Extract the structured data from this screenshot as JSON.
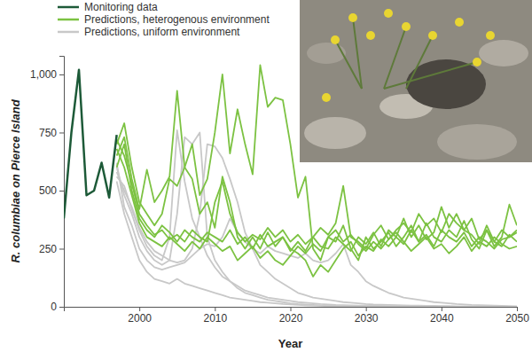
{
  "chart_data": {
    "type": "line",
    "y_label": "R. columbiae on Pierce Island",
    "x_label": "Year",
    "x": [
      1990,
      1991,
      1992,
      1993,
      1994,
      1995,
      1996,
      1997,
      1998,
      1999,
      2000,
      2001,
      2002,
      2003,
      2004,
      2005,
      2006,
      2007,
      2008,
      2009,
      2010,
      2011,
      2012,
      2013,
      2014,
      2015,
      2016,
      2017,
      2018,
      2019,
      2020,
      2021,
      2022,
      2023,
      2024,
      2025,
      2026,
      2027,
      2028,
      2029,
      2030,
      2031,
      2032,
      2033,
      2034,
      2035,
      2036,
      2037,
      2038,
      2039,
      2040,
      2041,
      2042,
      2043,
      2044,
      2045,
      2046,
      2047,
      2048,
      2049,
      2050
    ],
    "xlim": [
      1990,
      2050
    ],
    "xticks": [
      2000,
      2010,
      2020,
      2030,
      2040,
      2050
    ],
    "ylim": [
      0,
      1080
    ],
    "yticks": [
      0,
      250,
      500,
      750,
      {
        "value": 1000,
        "label": "1,000"
      }
    ],
    "legend": "top-left",
    "series": [
      {
        "name": "Monitoring data",
        "color": "#1d5a38",
        "values": [
          380,
          750,
          1020,
          480,
          500,
          620,
          470,
          740,
          null,
          null,
          null,
          null,
          null,
          null,
          null,
          null,
          null,
          null,
          null,
          null,
          null,
          null,
          null,
          null,
          null,
          null,
          null,
          null,
          null,
          null,
          null,
          null,
          null,
          null,
          null,
          null,
          null,
          null,
          null,
          null,
          null,
          null,
          null,
          null,
          null,
          null,
          null,
          null,
          null,
          null,
          null,
          null,
          null,
          null,
          null,
          null,
          null,
          null,
          null,
          null,
          null
        ]
      },
      {
        "name": "Predictions, heterogenous environment",
        "color": "#7cc242",
        "values": [
          null,
          null,
          null,
          null,
          null,
          null,
          null,
          700,
          790,
          600,
          450,
          400,
          350,
          400,
          550,
          520,
          600,
          700,
          480,
          550,
          750,
          1000,
          660,
          850,
          700,
          570,
          1040,
          860,
          900,
          890,
          700,
          470,
          560,
          250,
          200,
          300,
          280,
          350,
          250,
          200,
          300,
          250,
          280,
          320,
          260,
          300,
          350,
          280,
          310,
          260,
          330,
          300,
          280,
          320,
          260,
          300,
          280,
          250,
          290,
          300,
          320
        ]
      },
      {
        "name": "Predictions, heterogenous environment",
        "color": "#7cc242",
        "values": [
          null,
          null,
          null,
          null,
          null,
          null,
          null,
          650,
          730,
          550,
          420,
          590,
          450,
          500,
          560,
          930,
          600,
          550,
          400,
          450,
          340,
          560,
          450,
          300,
          250,
          300,
          250,
          320,
          260,
          300,
          240,
          280,
          240,
          300,
          260,
          250,
          300,
          270,
          240,
          300,
          270,
          320,
          260,
          330,
          300,
          380,
          300,
          350,
          290,
          320,
          430,
          340,
          400,
          330,
          380,
          290,
          330,
          260,
          300,
          440,
          350
        ]
      },
      {
        "name": "Predictions, heterogenous environment",
        "color": "#7cc242",
        "values": [
          null,
          null,
          null,
          null,
          null,
          null,
          null,
          600,
          700,
          500,
          380,
          330,
          300,
          350,
          320,
          280,
          330,
          300,
          280,
          320,
          300,
          280,
          330,
          270,
          300,
          250,
          310,
          260,
          280,
          300,
          250,
          230,
          200,
          130,
          180,
          150,
          200,
          250,
          280,
          220,
          260,
          240,
          290,
          260,
          300,
          270,
          330,
          280,
          360,
          300,
          280,
          330,
          300,
          370,
          290,
          250,
          330,
          280,
          260,
          310,
          280
        ]
      },
      {
        "name": "Predictions, heterogenous environment",
        "color": "#7cc242",
        "values": [
          null,
          null,
          null,
          null,
          null,
          null,
          null,
          680,
          600,
          480,
          360,
          300,
          280,
          260,
          300,
          270,
          240,
          280,
          250,
          300,
          270,
          240,
          260,
          200,
          230,
          260,
          210,
          240,
          200,
          180,
          220,
          260,
          230,
          270,
          240,
          300,
          330,
          280,
          310,
          270,
          240,
          280,
          250,
          290,
          320,
          280,
          240,
          270,
          300,
          250,
          270,
          230,
          260,
          300,
          240,
          280,
          260,
          300,
          270,
          250,
          260
        ]
      },
      {
        "name": "Predictions, heterogenous environment",
        "color": "#7cc242",
        "values": [
          null,
          null,
          null,
          null,
          null,
          null,
          null,
          720,
          650,
          530,
          400,
          350,
          310,
          330,
          290,
          310,
          280,
          330,
          300,
          280,
          450,
          540,
          400,
          320,
          280,
          310,
          290,
          340,
          300,
          330,
          280,
          310,
          270,
          300,
          340,
          310,
          360,
          520,
          300,
          280,
          250,
          310,
          350,
          290,
          330,
          360,
          320,
          400,
          350,
          380,
          320,
          400,
          360,
          330,
          310,
          270,
          350,
          280,
          330,
          300,
          330
        ]
      },
      {
        "name": "Predictions, uniform environment",
        "color": "#c8c8c8",
        "values": [
          null,
          null,
          null,
          null,
          null,
          null,
          null,
          560,
          520,
          420,
          330,
          260,
          220,
          200,
          300,
          760,
          540,
          380,
          300,
          220,
          170,
          130,
          110,
          90,
          70,
          60,
          50,
          40,
          35,
          30,
          25,
          20,
          18,
          15,
          12,
          10,
          8,
          7,
          6,
          5,
          5,
          4,
          4,
          3,
          3,
          2,
          2,
          2,
          1,
          1,
          1,
          1,
          0,
          0,
          0,
          0,
          0,
          0,
          0,
          0,
          0
        ]
      },
      {
        "name": "Predictions, uniform environment",
        "color": "#c8c8c8",
        "values": [
          null,
          null,
          null,
          null,
          null,
          null,
          null,
          600,
          480,
          400,
          300,
          240,
          200,
          180,
          200,
          400,
          730,
          700,
          750,
          300,
          200,
          150,
          110,
          80,
          60,
          50,
          40,
          30,
          25,
          20,
          15,
          12,
          10,
          8,
          6,
          5,
          4,
          3,
          3,
          2,
          2,
          1,
          1,
          1,
          0,
          0,
          0,
          0,
          0,
          0,
          0,
          0,
          0,
          0,
          0,
          0,
          0,
          0,
          0,
          0,
          0
        ]
      },
      {
        "name": "Predictions, uniform environment",
        "color": "#c8c8c8",
        "values": [
          null,
          null,
          null,
          null,
          null,
          null,
          null,
          580,
          500,
          430,
          340,
          280,
          240,
          220,
          200,
          190,
          200,
          250,
          400,
          700,
          690,
          640,
          550,
          450,
          320,
          250,
          180,
          150,
          120,
          100,
          80,
          60,
          50,
          40,
          35,
          30,
          25,
          20,
          18,
          15,
          12,
          10,
          9,
          8,
          7,
          6,
          5,
          5,
          4,
          4,
          3,
          3,
          2,
          2,
          2,
          1,
          1,
          1,
          1,
          0,
          0
        ]
      },
      {
        "name": "Predictions, uniform environment",
        "color": "#c8c8c8",
        "values": [
          null,
          null,
          null,
          null,
          null,
          null,
          null,
          620,
          430,
          350,
          250,
          200,
          170,
          160,
          170,
          180,
          190,
          220,
          250,
          270,
          260,
          300,
          380,
          320,
          280,
          250,
          230,
          260,
          240,
          230,
          220,
          210,
          230,
          200,
          190,
          200,
          230,
          270,
          180,
          150,
          110,
          90,
          75,
          60,
          50,
          40,
          35,
          30,
          25,
          20,
          18,
          15,
          12,
          10,
          8,
          7,
          6,
          5,
          4,
          3,
          2
        ]
      },
      {
        "name": "Predictions, uniform environment",
        "color": "#c8c8c8",
        "values": [
          null,
          null,
          null,
          null,
          null,
          null,
          null,
          540,
          400,
          300,
          200,
          150,
          120,
          110,
          100,
          120,
          100,
          90,
          80,
          70,
          60,
          50,
          40,
          35,
          30,
          25,
          20,
          18,
          15,
          12,
          10,
          8,
          6,
          5,
          4,
          3,
          2,
          2,
          1,
          1,
          1,
          0,
          0,
          0,
          0,
          0,
          0,
          0,
          0,
          0,
          0,
          0,
          0,
          0,
          0,
          0,
          0,
          0,
          0,
          0,
          0
        ]
      }
    ]
  }
}
